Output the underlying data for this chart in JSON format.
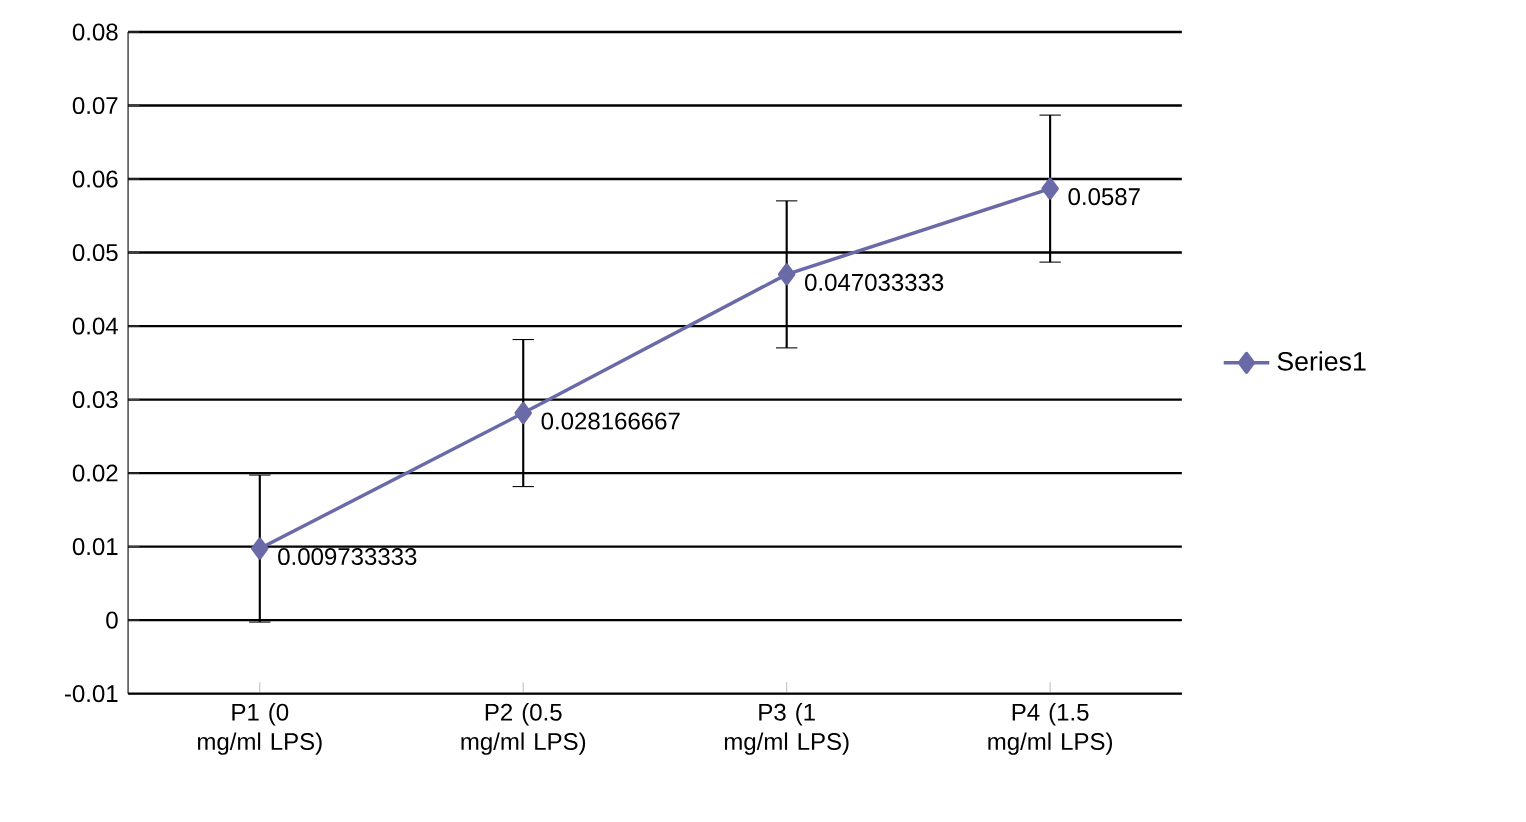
{
  "chart_data": {
    "type": "line",
    "categories": [
      "P1 (0 mg/ml LPS)",
      "P2 (0.5 mg/ml LPS)",
      "P3 (1 mg/ml LPS)",
      "P4 (1.5 mg/ml LPS)"
    ],
    "series": [
      {
        "name": "Series1",
        "color": "#6a6aa8",
        "values": [
          0.009733333,
          0.028166667,
          0.047033333,
          0.0587
        ],
        "errors": [
          0.01,
          0.01,
          0.01,
          0.01
        ],
        "value_labels": [
          "0.009733333",
          "0.028166667",
          "0.047033333",
          "0.0587"
        ]
      }
    ],
    "ylim": [
      -0.01,
      0.08
    ],
    "yticks": [
      -0.01,
      0,
      0.01,
      0.02,
      0.03,
      0.04,
      0.05,
      0.06,
      0.07,
      0.08
    ],
    "grid": "y",
    "legend": "right",
    "marker": "diamond",
    "line_style": "solid"
  }
}
